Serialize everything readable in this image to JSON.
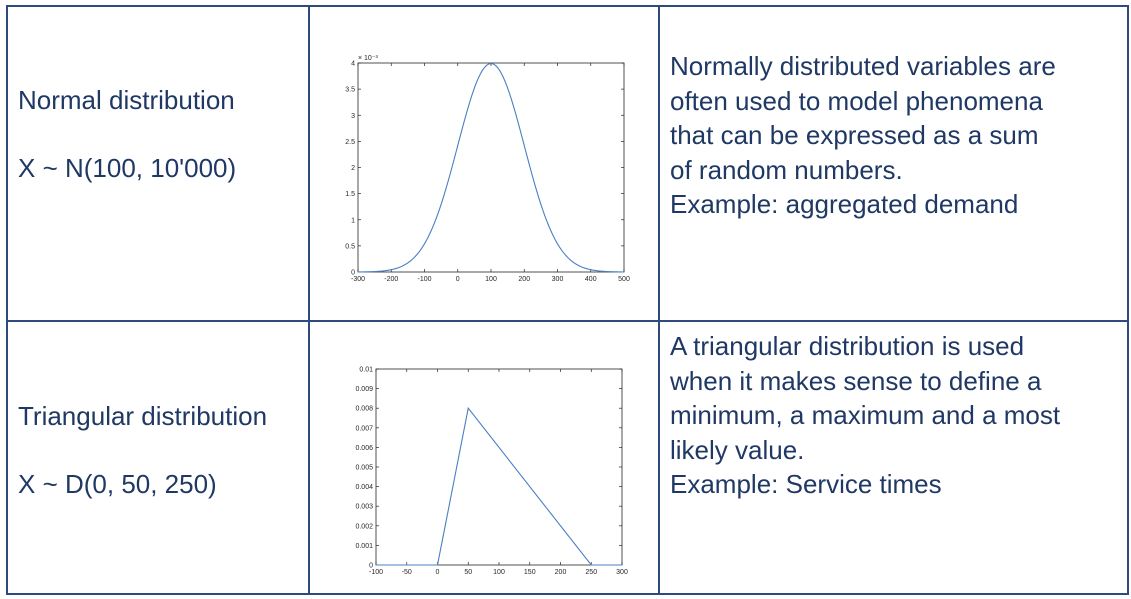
{
  "rows": [
    {
      "label_line1": "Normal distribution",
      "label_line2": "X ~ N(100, 10'000)",
      "description": "Normally distributed variables are\noften used to model phenomena\nthat can be expressed as a sum\nof random numbers.\nExample: aggregated demand"
    },
    {
      "label_line1": "Triangular distribution",
      "label_line2": "X ~ D(0, 50, 250)",
      "description": "A triangular distribution is used\nwhen it makes sense to define a\nminimum, a maximum and a most\nlikely value.\nExample: Service times"
    }
  ],
  "colors": {
    "border": "#2f4a7c",
    "text": "#1f3864",
    "line": "#4a7fc1",
    "axis": "#262626"
  },
  "chart_data": [
    {
      "type": "line",
      "title": "",
      "xlabel": "",
      "ylabel": "",
      "distribution": "normal",
      "mean": 100,
      "variance": 10000,
      "xlim": [
        -300,
        500
      ],
      "ylim": [
        0,
        4
      ],
      "exponent_label": "× 10⁻³",
      "x_ticks": [
        -300,
        -200,
        -100,
        0,
        100,
        200,
        300,
        400,
        500
      ],
      "x_tick_labels": [
        "-300",
        "-200",
        "-100",
        "0",
        "100",
        "200",
        "300",
        "400",
        "500"
      ],
      "y_ticks": [
        0,
        0.5,
        1,
        1.5,
        2,
        2.5,
        3,
        3.5,
        4
      ],
      "y_tick_labels": [
        "0",
        "0.5",
        "1",
        "1.5",
        "2",
        "2.5",
        "3",
        "3.5",
        "4"
      ],
      "grid": false
    },
    {
      "type": "line",
      "title": "",
      "xlabel": "",
      "ylabel": "",
      "distribution": "triangular",
      "x": [
        -100,
        0,
        50,
        250,
        300
      ],
      "y": [
        0,
        0,
        0.008,
        0,
        0
      ],
      "xlim": [
        -100,
        300
      ],
      "ylim": [
        0,
        0.01
      ],
      "x_ticks": [
        -100,
        -50,
        0,
        50,
        100,
        150,
        200,
        250,
        300
      ],
      "x_tick_labels": [
        "-100",
        "-50",
        "0",
        "50",
        "100",
        "150",
        "200",
        "250",
        "300"
      ],
      "y_ticks": [
        0,
        0.001,
        0.002,
        0.003,
        0.004,
        0.005,
        0.006,
        0.007,
        0.008,
        0.009,
        0.01
      ],
      "y_tick_labels": [
        "0",
        "0.001",
        "0.002",
        "0.003",
        "0.004",
        "0.005",
        "0.006",
        "0.007",
        "0.008",
        "0.009",
        "0.01"
      ],
      "grid": false
    }
  ]
}
